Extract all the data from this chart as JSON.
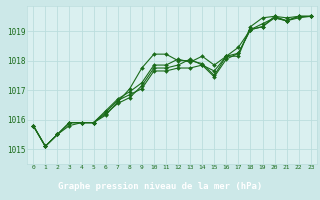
{
  "title": "Graphe pression niveau de la mer (hPa)",
  "bg_color": "#cce8e8",
  "plot_bg": "#daf0f0",
  "grid_color": "#bbdddd",
  "line_color": "#1a6b1a",
  "label_bg": "#336633",
  "label_fg": "#ffffff",
  "xlim": [
    -0.5,
    23.5
  ],
  "ylim": [
    1014.5,
    1019.85
  ],
  "yticks": [
    1015,
    1016,
    1017,
    1018,
    1019
  ],
  "xticks": [
    0,
    1,
    2,
    3,
    4,
    5,
    6,
    7,
    8,
    9,
    10,
    11,
    12,
    13,
    14,
    15,
    16,
    17,
    18,
    19,
    20,
    21,
    22,
    23
  ],
  "series": [
    [
      1015.8,
      1015.1,
      1015.5,
      1015.8,
      1015.9,
      1015.9,
      1016.15,
      1016.6,
      1017.05,
      1017.75,
      1018.22,
      1018.22,
      1018.0,
      1018.0,
      1017.9,
      1017.5,
      1018.15,
      1018.15,
      1019.15,
      1019.45,
      1019.5,
      1019.35,
      1019.5,
      1019.5
    ],
    [
      1015.8,
      1015.1,
      1015.5,
      1015.9,
      1015.9,
      1015.9,
      1016.25,
      1016.65,
      1016.85,
      1017.05,
      1017.65,
      1017.65,
      1017.75,
      1017.75,
      1017.85,
      1017.65,
      1018.15,
      1018.25,
      1019.05,
      1019.15,
      1019.45,
      1019.35,
      1019.45,
      1019.5
    ],
    [
      1015.8,
      1015.1,
      1015.5,
      1015.9,
      1015.9,
      1015.9,
      1016.3,
      1016.7,
      1016.95,
      1017.25,
      1017.85,
      1017.85,
      1018.05,
      1017.95,
      1018.15,
      1017.85,
      1018.15,
      1018.45,
      1019.05,
      1019.25,
      1019.45,
      1019.35,
      1019.5,
      1019.5
    ],
    [
      1015.8,
      1015.1,
      1015.5,
      1015.9,
      1015.9,
      1015.9,
      1016.2,
      1016.55,
      1016.75,
      1017.15,
      1017.75,
      1017.75,
      1017.85,
      1018.05,
      1017.85,
      1017.45,
      1018.05,
      1018.25,
      1019.05,
      1019.15,
      1019.5,
      1019.45,
      1019.5,
      1019.5
    ]
  ]
}
